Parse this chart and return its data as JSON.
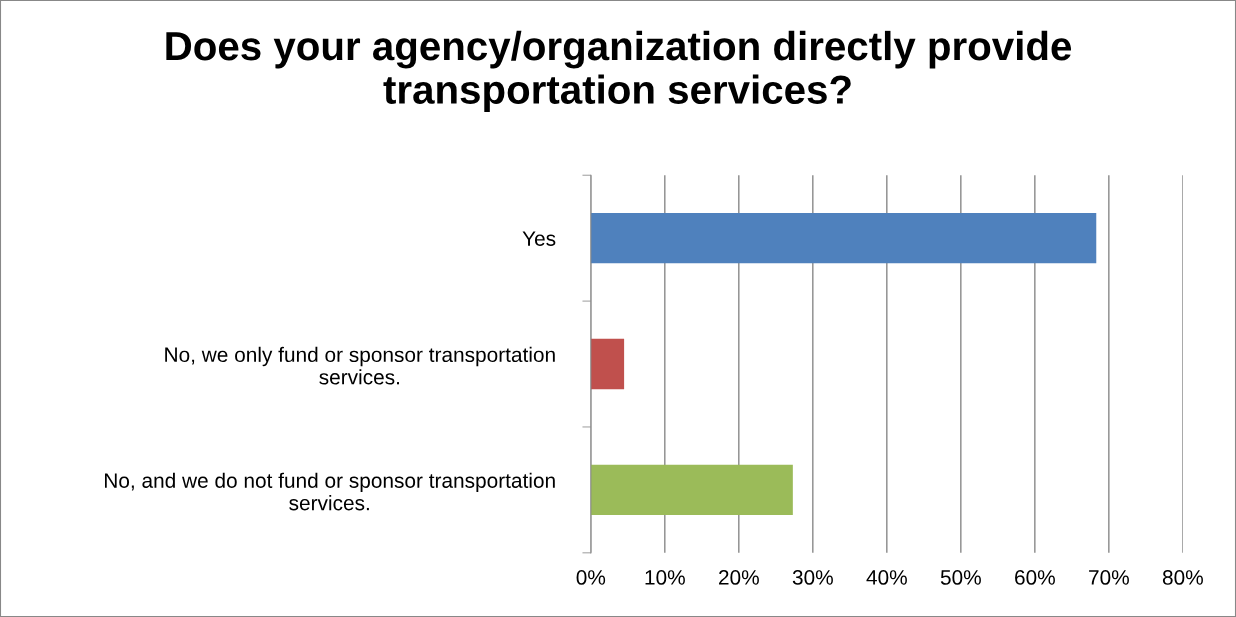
{
  "chart_data": {
    "type": "bar",
    "orientation": "horizontal",
    "title": "Does your agency/organization directly provide\ntransportation services?",
    "categories": [
      "Yes",
      "No, we only fund or sponsor transportation\nservices.",
      "No, and we do not fund or sponsor transportation\nservices."
    ],
    "values": [
      68.3,
      4.5,
      27.3
    ],
    "colors": [
      "#4f81bd",
      "#c0504d",
      "#9bbb59"
    ],
    "xlim": [
      0,
      80
    ],
    "xticks": [
      {
        "value": 0,
        "label": "0%"
      },
      {
        "value": 10,
        "label": "10%"
      },
      {
        "value": 20,
        "label": "20%"
      },
      {
        "value": 30,
        "label": "30%"
      },
      {
        "value": 40,
        "label": "40%"
      },
      {
        "value": 50,
        "label": "50%"
      },
      {
        "value": 60,
        "label": "60%"
      },
      {
        "value": 70,
        "label": "70%"
      },
      {
        "value": 80,
        "label": "80%"
      }
    ],
    "grid": "x",
    "legend": false
  }
}
